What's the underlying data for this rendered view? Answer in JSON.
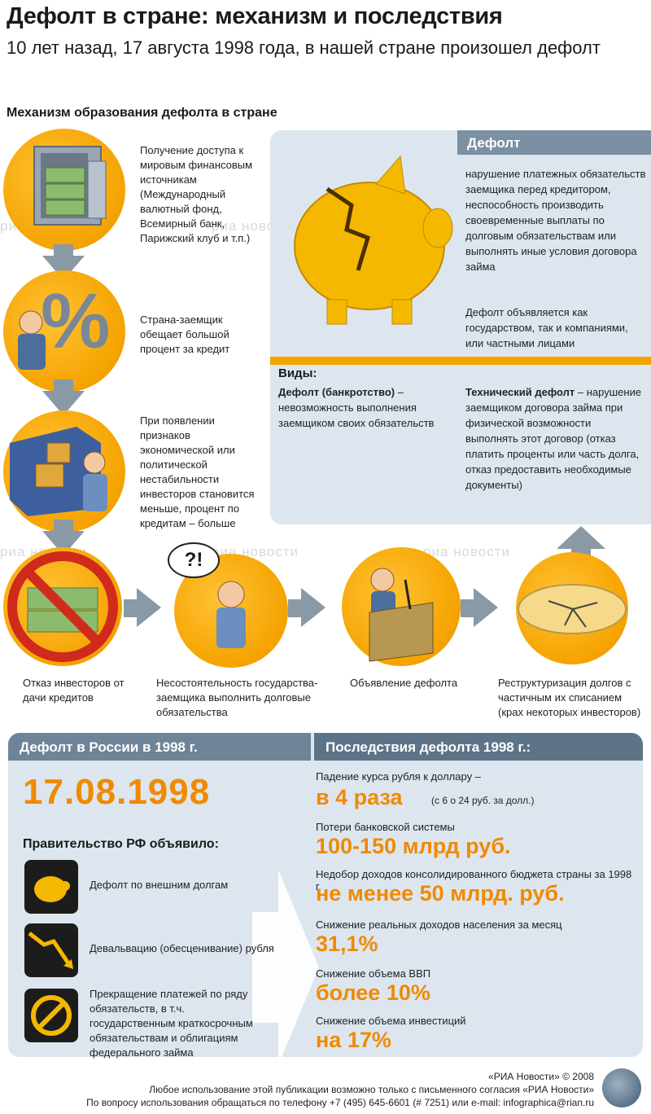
{
  "header": {
    "title": "Дефолт в стране: механизм и последствия",
    "subtitle": "10 лет назад, 17 августа 1998 года, в нашей стране произошел дефолт",
    "mechanism_title": "Механизм образования дефолта в стране"
  },
  "steps": [
    {
      "text": "Получение доступа к мировым финансовым источникам (Международный валютный фонд, Всемирный банк, Парижский клуб и т.п.)"
    },
    {
      "text": "Страна-заемщик обещает большой процент за кредит"
    },
    {
      "text": "При появлении признаков экономической или политической нестабильности инвесторов становится меньше, процент по кредитам – больше"
    }
  ],
  "percent_symbol": "%",
  "question_bubble": "?!",
  "flow": [
    {
      "label": "Отказ инвесторов от дачи кредитов"
    },
    {
      "label": "Несостоятельность государства-заемщика выполнить долговые обязательства"
    },
    {
      "label": "Объявление дефолта"
    },
    {
      "label": "Реструктуризация долгов с частичным их списанием (крах некоторых инвесторов)"
    }
  ],
  "default_panel": {
    "heading": "Дефолт",
    "definition": "нарушение платежных обязательств заемщика перед кредитором, неспособность производить своевременные выплаты по долговым обязательствам или выполнять иные условия договора займа",
    "declared_by": "Дефолт объявляется как государством, так и компаниями, или частными лицами",
    "types_heading": "Виды:",
    "type1_name": "Дефолт (банкротство)",
    "type1_desc": " – невозможность выполнения заемщиком своих обязательств",
    "type2_name": "Технический дефолт",
    "type2_desc": " – нарушение заемщиком договора займа при физической возможности выполнять этот договор (отказ платить проценты или часть долга, отказ предоставить необходимые документы)"
  },
  "russia": {
    "heading": "Дефолт в России в 1998 г.",
    "date": "17.08.1998",
    "gov_heading": "Правительство РФ объявило:",
    "items": [
      {
        "text": "Дефолт по внешним долгам"
      },
      {
        "text": "Девальвацию (обесценивание) рубля"
      },
      {
        "text": "Прекращение платежей по ряду обязательств, в т.ч. государственным краткосрочным обязательствам и облигациям федерального займа"
      }
    ]
  },
  "consequences": {
    "heading": "Последствия дефолта 1998 г.:",
    "items": [
      {
        "label": "Падение курса рубля к доллару –",
        "value": "в 4 раза",
        "note": "(с 6 о 24 руб. за долл.)"
      },
      {
        "label": "Потери банковской системы",
        "value": "100-150 млрд руб."
      },
      {
        "label": "Недобор доходов консолидированного бюджета страны за 1998 г.",
        "value": "не менее 50 млрд. руб."
      },
      {
        "label": "Снижение реальных доходов населения за месяц",
        "value": "31,1%"
      },
      {
        "label": "Снижение объема ВВП",
        "value": "более 10%"
      },
      {
        "label": "Снижение объема инвестиций",
        "value": "на 17%"
      }
    ]
  },
  "footer": {
    "copyright": "«РИА Новости» © 2008",
    "line1": "Любое использование этой публикации возможно только с письменного согласия «РИА Новости»",
    "line2": "По вопросу использования обращаться по телефону +7 (495) 645-6601 (# 7251) или e-mail: infographica@rian.ru"
  },
  "watermark": "риа новости",
  "colors": {
    "accent": "#f5a300",
    "value": "#f08a00",
    "panel": "#dde6ee",
    "arrow": "#8a99a6"
  }
}
